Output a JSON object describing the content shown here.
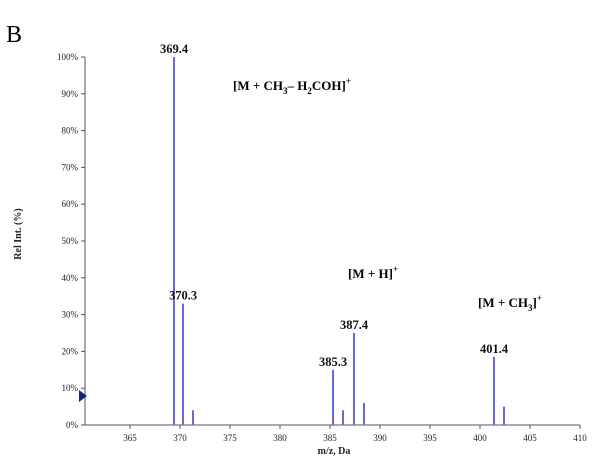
{
  "panel_label": "B",
  "chart_data": {
    "type": "bar",
    "title": "",
    "xlabel": "m/z, Da",
    "ylabel": "Rel Int. (%)",
    "xlim": [
      360.5,
      410
    ],
    "ylim": [
      0,
      100
    ],
    "x_ticks": [
      365,
      370,
      375,
      380,
      385,
      390,
      395,
      400,
      405,
      410
    ],
    "y_ticks": [
      0,
      10,
      20,
      30,
      40,
      50,
      60,
      70,
      80,
      90,
      100
    ],
    "y_tick_suffix": "%",
    "grid": false,
    "bar_color": "#6a6ae0",
    "peaks": [
      {
        "x": 369.4,
        "y": 100,
        "label": "369.4"
      },
      {
        "x": 370.3,
        "y": 33,
        "label": "370.3"
      },
      {
        "x": 371.3,
        "y": 4,
        "label": ""
      },
      {
        "x": 385.3,
        "y": 15,
        "label": "385.3"
      },
      {
        "x": 386.3,
        "y": 4,
        "label": ""
      },
      {
        "x": 387.4,
        "y": 25,
        "label": "387.4"
      },
      {
        "x": 388.4,
        "y": 6,
        "label": ""
      },
      {
        "x": 401.4,
        "y": 18.5,
        "label": "401.4"
      },
      {
        "x": 402.4,
        "y": 5,
        "label": ""
      }
    ],
    "annotations": [
      {
        "parts": [
          "[M + CH",
          "3",
          "– H",
          "2",
          "COH]",
          "+"
        ],
        "kinds": [
          "n",
          "sub",
          "n",
          "sub",
          "n",
          "sup"
        ],
        "x": 375.3,
        "y": 91
      },
      {
        "parts": [
          "[M + H]",
          "+"
        ],
        "kinds": [
          "n",
          "sup"
        ],
        "x": 386.8,
        "y": 40
      },
      {
        "parts": [
          "[M + CH",
          "3",
          "]",
          "+"
        ],
        "kinds": [
          "n",
          "sub",
          "n",
          "sup"
        ],
        "x": 399.8,
        "y": 32
      }
    ]
  }
}
